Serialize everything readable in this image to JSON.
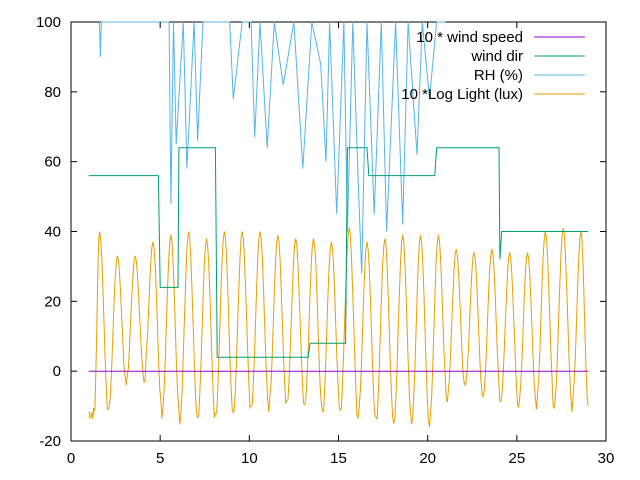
{
  "chart_data": {
    "type": "line",
    "title": "",
    "xlabel": "",
    "ylabel": "",
    "xlim": [
      0,
      30
    ],
    "ylim": [
      -20,
      100
    ],
    "xticks": [
      0,
      5,
      10,
      15,
      20,
      25,
      30
    ],
    "yticks": [
      -20,
      0,
      20,
      40,
      60,
      80,
      100
    ],
    "grid": false,
    "legend_position": "top-right",
    "series": [
      {
        "name": "10 * wind speed",
        "color": "#9400d3",
        "style": "constant",
        "x": [
          1,
          29
        ],
        "values": [
          0,
          0
        ]
      },
      {
        "name": "wind dir",
        "color": "#009e73",
        "style": "step",
        "x": [
          1,
          4.9,
          5.0,
          6.0,
          6.05,
          8.1,
          8.2,
          13.3,
          13.4,
          15.4,
          15.5,
          16.6,
          16.7,
          20.4,
          20.5,
          24.0,
          24.05,
          24.15,
          29
        ],
        "values": [
          56,
          56,
          24,
          24,
          64,
          64,
          4,
          4,
          8,
          8,
          64,
          64,
          56,
          56,
          64,
          64,
          32,
          40,
          40
        ]
      },
      {
        "name": "RH (%)",
        "color": "#56b4e9",
        "style": "spiky",
        "x": [
          1.6,
          1.65,
          1.7,
          5.5,
          5.6,
          5.75,
          5.9,
          6.3,
          6.5,
          6.9,
          7.1,
          7.4,
          8.9,
          9.1,
          9.6,
          10.1,
          10.3,
          10.6,
          11.0,
          11.4,
          11.9,
          12.5,
          13.0,
          13.5,
          14.0,
          14.3,
          14.5,
          14.9,
          15.3,
          15.5,
          15.8,
          16.1,
          16.3,
          16.6,
          17.0,
          17.4,
          17.7,
          18.2,
          18.6,
          18.9,
          19.4,
          19.7,
          20.1,
          20.5,
          21.0
        ],
        "values": [
          100,
          90,
          100,
          100,
          48,
          100,
          65,
          100,
          58,
          100,
          66,
          100,
          100,
          78,
          100,
          100,
          67,
          100,
          64,
          100,
          82,
          100,
          58,
          100,
          88,
          60,
          100,
          45,
          100,
          40,
          100,
          55,
          28,
          100,
          45,
          100,
          40,
          100,
          42,
          100,
          62,
          100,
          78,
          100,
          100
        ]
      },
      {
        "name": "10 *Log Light (lux)",
        "color": "#e69f00",
        "style": "diurnal",
        "x": [
          1.0,
          1.3,
          1.6,
          2.1,
          2.6,
          3.1,
          3.6,
          4.1,
          4.6,
          5.1,
          5.6,
          6.1,
          6.6,
          7.1,
          7.6,
          8.1,
          8.6,
          9.1,
          9.6,
          10.1,
          10.6,
          11.1,
          11.6,
          12.1,
          12.6,
          13.1,
          13.6,
          14.1,
          14.6,
          15.1,
          15.6,
          16.1,
          16.6,
          17.1,
          17.6,
          18.1,
          18.6,
          19.1,
          19.6,
          20.1,
          20.6,
          21.1,
          21.6,
          22.1,
          22.6,
          23.1,
          23.6,
          24.1,
          24.6,
          25.1,
          25.6,
          26.1,
          26.6,
          27.1,
          27.6,
          28.1,
          28.6,
          29.0
        ],
        "values": [
          -12,
          -12,
          40,
          -12,
          33,
          -3,
          33,
          -2,
          37,
          -12,
          39,
          -14,
          40,
          -14,
          38,
          -14,
          40,
          -12,
          40,
          -11,
          40,
          -10,
          39,
          -10,
          38,
          -10,
          38,
          -12,
          37,
          -11,
          41,
          -13,
          37,
          -15,
          38,
          -15,
          39,
          -15,
          39,
          -15,
          39,
          -8,
          35,
          -6,
          34,
          -8,
          35,
          -8,
          34,
          -10,
          34,
          -10,
          40,
          -10,
          41,
          -10,
          40,
          -10
        ]
      }
    ]
  }
}
